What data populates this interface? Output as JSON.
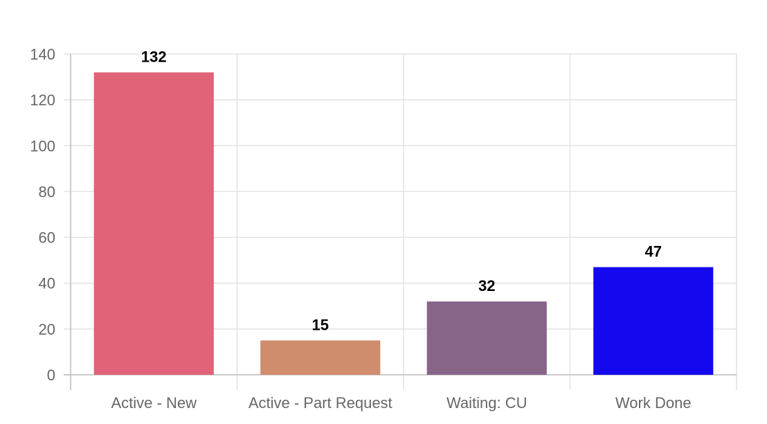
{
  "chart_data": {
    "type": "bar",
    "categories": [
      "Active - New",
      "Active - Part Request",
      "Waiting: CU",
      "Work Done"
    ],
    "values": [
      132,
      15,
      32,
      47
    ],
    "colors": [
      "#e06377",
      "#cf8d6e",
      "#876589",
      "#1408ee"
    ],
    "title": "",
    "xlabel": "",
    "ylabel": "",
    "ylim": [
      0,
      140
    ],
    "yticks": [
      0,
      20,
      40,
      60,
      80,
      100,
      120,
      140
    ],
    "grid": true,
    "legend": "none",
    "data_labels": true
  }
}
